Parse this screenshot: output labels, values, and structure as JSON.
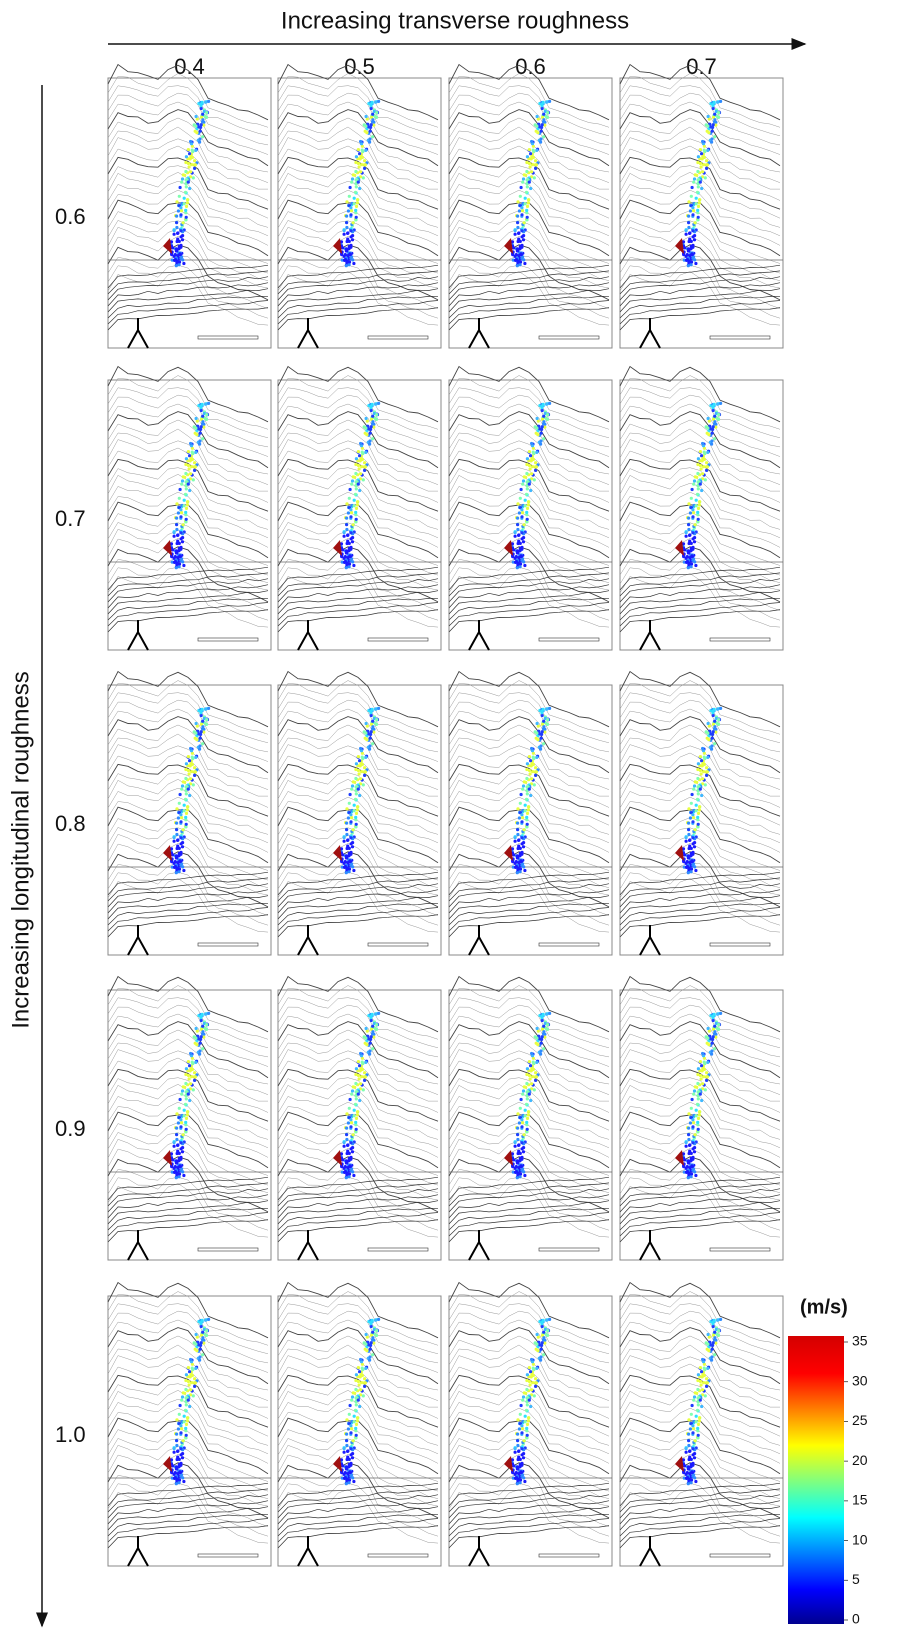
{
  "figure": {
    "top_axis_title": "Increasing transverse roughness",
    "column_labels": [
      "0.4",
      "0.5",
      "0.6",
      "0.7"
    ],
    "side_axis_title": "Increasing longitudinal roughness",
    "row_labels": [
      "0.6",
      "0.7",
      "0.8",
      "0.9",
      "1.0"
    ]
  },
  "colorbar": {
    "title": "(m/s)",
    "range": [
      0,
      35
    ],
    "ticks": [
      35,
      30,
      25,
      20,
      15,
      10,
      5,
      0
    ]
  }
}
